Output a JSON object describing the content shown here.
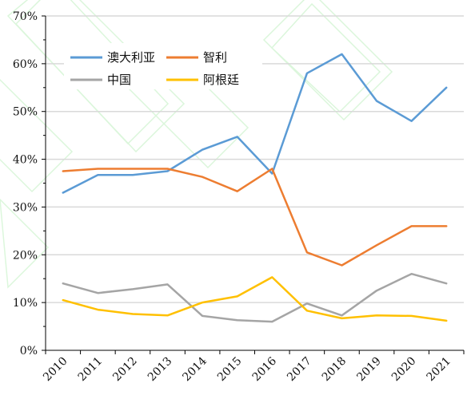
{
  "chart_data": {
    "type": "line",
    "title": "",
    "xlabel": "",
    "ylabel": "",
    "categories": [
      "2010",
      "2011",
      "2012",
      "2013",
      "2014",
      "2015",
      "2016",
      "2017",
      "2018",
      "2019",
      "2020",
      "2021"
    ],
    "ylim": [
      0,
      70
    ],
    "y_ticks": [
      0,
      10,
      20,
      30,
      40,
      50,
      60,
      70
    ],
    "y_tick_labels": [
      "0%",
      "10%",
      "20%",
      "30%",
      "40%",
      "50%",
      "60%",
      "70%"
    ],
    "grid": "horizontal",
    "legend_position": "top-left",
    "series": [
      {
        "name": "澳大利亚",
        "color": "#5b9bd5",
        "values": [
          33.0,
          36.7,
          36.7,
          37.5,
          42.0,
          44.7,
          37.0,
          58.0,
          62.0,
          52.2,
          48.0,
          55.0
        ]
      },
      {
        "name": "智利",
        "color": "#ed7d31",
        "values": [
          37.5,
          38.0,
          38.0,
          38.0,
          36.3,
          33.3,
          38.0,
          20.5,
          17.8,
          22.0,
          26.0,
          26.0
        ]
      },
      {
        "name": "中国",
        "color": "#a5a5a5",
        "values": [
          14.0,
          12.0,
          12.8,
          13.8,
          7.2,
          6.3,
          6.0,
          9.8,
          7.3,
          12.5,
          16.0,
          14.0
        ]
      },
      {
        "name": "阿根廷",
        "color": "#ffc000",
        "values": [
          10.5,
          8.5,
          7.6,
          7.3,
          10.0,
          11.3,
          15.3,
          8.3,
          6.7,
          7.3,
          7.2,
          6.2
        ]
      }
    ]
  }
}
